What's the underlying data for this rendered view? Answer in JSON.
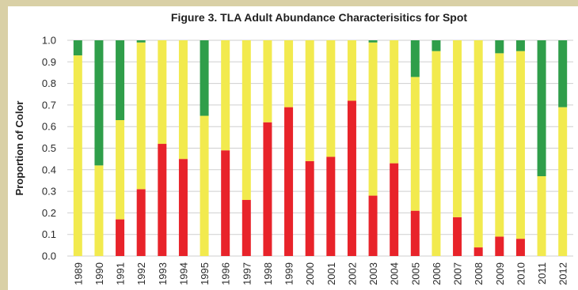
{
  "chart_data": {
    "type": "bar",
    "stacked": true,
    "title": "Figure 3. TLA Adult Abundance Characterisitics for Spot",
    "xlabel": "",
    "ylabel": "Proportion of Color",
    "ylim": [
      0,
      1.0
    ],
    "yticks": [
      "0.0",
      "0.1",
      "0.2",
      "0.3",
      "0.4",
      "0.5",
      "0.6",
      "0.7",
      "0.8",
      "0.9",
      "1.0"
    ],
    "grid": true,
    "categories": [
      "1989",
      "1990",
      "1991",
      "1992",
      "1993",
      "1994",
      "1995",
      "1996",
      "1997",
      "1998",
      "1999",
      "2000",
      "2001",
      "2002",
      "2003",
      "2004",
      "2005",
      "2006",
      "2007",
      "2008",
      "2009",
      "2010",
      "2011",
      "2012"
    ],
    "colors": {
      "red": "#e8232a",
      "yellow": "#f2ea4e",
      "green": "#2f9e4a"
    },
    "series": [
      {
        "key": "red",
        "values": [
          0.0,
          0.0,
          0.17,
          0.31,
          0.52,
          0.45,
          0.0,
          0.49,
          0.26,
          0.62,
          0.69,
          0.44,
          0.46,
          0.72,
          0.28,
          0.43,
          0.21,
          0.0,
          0.18,
          0.04,
          0.09,
          0.08,
          0.0,
          0.0
        ]
      },
      {
        "key": "yellow",
        "values": [
          0.93,
          0.42,
          0.46,
          0.68,
          0.48,
          0.55,
          0.65,
          0.51,
          0.74,
          0.38,
          0.31,
          0.56,
          0.54,
          0.28,
          0.71,
          0.57,
          0.62,
          0.95,
          0.82,
          0.96,
          0.85,
          0.87,
          0.37,
          0.69
        ]
      },
      {
        "key": "green",
        "values": [
          0.07,
          0.58,
          0.37,
          0.01,
          0.0,
          0.0,
          0.35,
          0.0,
          0.0,
          0.0,
          0.0,
          0.0,
          0.0,
          0.0,
          0.01,
          0.0,
          0.17,
          0.05,
          0.0,
          0.0,
          0.06,
          0.05,
          0.63,
          0.31
        ]
      }
    ]
  }
}
